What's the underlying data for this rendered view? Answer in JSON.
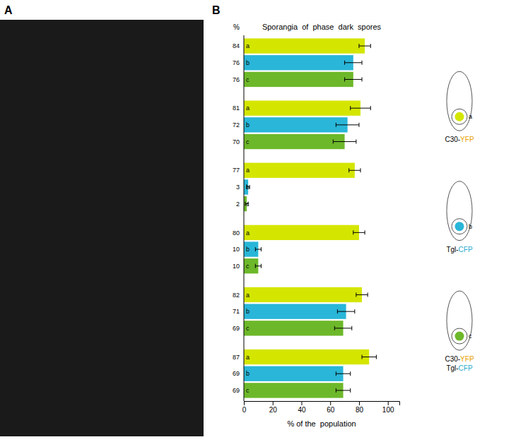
{
  "chart_data": {
    "type": "bar",
    "orientation": "horizontal",
    "subtitle": "Sporangia  of  phase  dark  spores",
    "x_label": "% of the  population",
    "categories": [
      null,
      null,
      null,
      null,
      null,
      null
    ],
    "series": [
      {
        "name": "a",
        "color": "#d4e600",
        "values": [
          84,
          81,
          77,
          80,
          82,
          87
        ],
        "errors": [
          4,
          7,
          4,
          4,
          4,
          5
        ],
        "caption": [
          [
            [
              "C30-",
              "#000000"
            ],
            [
              "YFP",
              "#e8a000"
            ]
          ]
        ]
      },
      {
        "name": "b",
        "color": "#29b6d8",
        "values": [
          76,
          72,
          3,
          10,
          71,
          69
        ],
        "errors": [
          6,
          8,
          1,
          2,
          6,
          5
        ],
        "caption": [
          [
            [
              "Tgl-",
              "#000000"
            ],
            [
              "CFP",
              "#29aacc"
            ]
          ]
        ]
      },
      {
        "name": "c",
        "color": "#6db82a",
        "values": [
          76,
          70,
          2,
          10,
          69,
          69
        ],
        "errors": [
          6,
          8,
          1,
          2,
          6,
          5
        ],
        "caption": [
          [
            [
              "C30-",
              "#000000"
            ],
            [
              "YFP",
              "#e8a000"
            ]
          ],
          [
            [
              "Tgl-",
              "#000000"
            ],
            [
              "CFP",
              "#29aacc"
            ]
          ]
        ]
      }
    ],
    "xlim": [
      0,
      108
    ],
    "xticks": [
      0,
      20,
      40,
      60,
      80,
      100
    ],
    "data_labels": true,
    "legend": "right",
    "grid": false,
    "annotations": [
      "A",
      "B",
      "%"
    ]
  }
}
